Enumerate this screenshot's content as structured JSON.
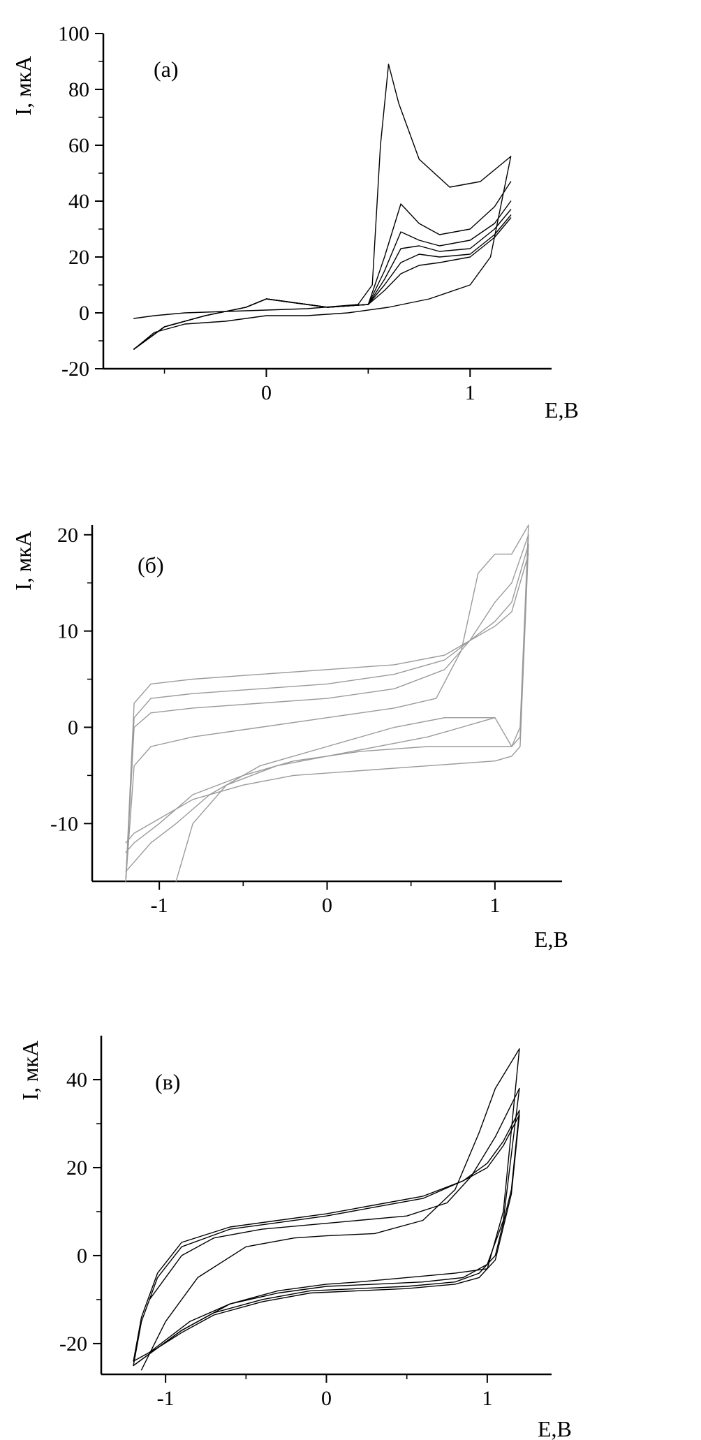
{
  "chart_data": [
    {
      "type": "line",
      "panel_label": "(а)",
      "xlabel": "E,B",
      "ylabel": "I, мкА",
      "xlim": [
        -0.8,
        1.4
      ],
      "ylim": [
        -20,
        100
      ],
      "xticks": [
        0,
        1
      ],
      "xtick_labels": [
        "0",
        "1"
      ],
      "yticks": [
        -20,
        0,
        20,
        40,
        60,
        80,
        100
      ],
      "ytick_labels": [
        "-20",
        "0",
        "20",
        "40",
        "60",
        "80",
        "100"
      ],
      "line_color": "#000000",
      "series": [
        {
          "x": [
            -0.65,
            -0.55,
            -0.4,
            -0.2,
            0.0,
            0.2,
            0.45,
            0.52,
            0.56,
            0.6,
            0.65,
            0.75,
            0.9,
            1.05,
            1.2
          ],
          "y": [
            -2,
            -1,
            0,
            0.5,
            1,
            1.5,
            3,
            10,
            60,
            89,
            75,
            55,
            45,
            47,
            56
          ]
        },
        {
          "x": [
            1.2,
            1.1,
            1.0,
            0.8,
            0.6,
            0.4,
            0.2,
            0.0,
            -0.2,
            -0.4,
            -0.55,
            -0.65
          ],
          "y": [
            56,
            20,
            10,
            5,
            2,
            0,
            -1,
            -1,
            -3,
            -4,
            -7,
            -13
          ]
        },
        {
          "x": [
            -0.65,
            -0.5,
            -0.3,
            -0.1,
            0.0,
            0.1,
            0.3,
            0.5,
            0.58,
            0.66,
            0.75,
            0.85,
            1.0,
            1.12,
            1.2
          ],
          "y": [
            -13,
            -5,
            -1,
            2,
            5,
            4,
            2,
            3,
            20,
            39,
            32,
            28,
            30,
            38,
            47
          ]
        },
        {
          "x": [
            -0.65,
            -0.5,
            -0.3,
            -0.1,
            0.0,
            0.1,
            0.3,
            0.5,
            0.58,
            0.66,
            0.75,
            0.85,
            1.0,
            1.12,
            1.2
          ],
          "y": [
            -13,
            -5,
            -1,
            2,
            5,
            4,
            2,
            3,
            15,
            29,
            26,
            24,
            26,
            32,
            40
          ]
        },
        {
          "x": [
            -0.65,
            -0.5,
            -0.3,
            -0.1,
            0.0,
            0.1,
            0.3,
            0.5,
            0.58,
            0.66,
            0.75,
            0.85,
            1.0,
            1.12,
            1.2
          ],
          "y": [
            -13,
            -5,
            -1,
            2,
            5,
            4,
            2,
            3,
            12,
            23,
            24,
            22,
            23,
            30,
            37
          ]
        },
        {
          "x": [
            -0.65,
            -0.5,
            -0.3,
            -0.1,
            0.0,
            0.1,
            0.3,
            0.5,
            0.58,
            0.66,
            0.75,
            0.85,
            1.0,
            1.12,
            1.2
          ],
          "y": [
            -13,
            -5,
            -1,
            2,
            5,
            4,
            2,
            3,
            10,
            18,
            21,
            20,
            21,
            28,
            35
          ]
        },
        {
          "x": [
            -0.65,
            -0.5,
            -0.3,
            -0.1,
            0.0,
            0.1,
            0.3,
            0.5,
            0.58,
            0.66,
            0.75,
            0.85,
            1.0,
            1.12,
            1.2
          ],
          "y": [
            -13,
            -5,
            -1,
            2,
            5,
            4,
            2,
            3,
            8,
            14,
            17,
            18,
            20,
            27,
            34
          ]
        }
      ]
    },
    {
      "type": "line",
      "panel_label": "(б)",
      "xlabel": "E,B",
      "ylabel": "I, мкА",
      "xlim": [
        -1.4,
        1.4
      ],
      "ylim": [
        -16,
        21
      ],
      "xticks": [
        -1,
        0,
        1
      ],
      "xtick_labels": [
        "-1",
        "0",
        "1"
      ],
      "yticks": [
        -10,
        0,
        10,
        20
      ],
      "ytick_labels": [
        "-10",
        "0",
        "10",
        "20"
      ],
      "line_color": "#9a9a9a",
      "series": [
        {
          "x": [
            -1.2,
            -1.15,
            -1.05,
            -0.8,
            -0.4,
            0.0,
            0.4,
            0.65,
            0.8,
            0.9,
            1.0,
            1.1,
            1.2
          ],
          "y": [
            -16,
            -4,
            -2,
            -1,
            0,
            1,
            2,
            3,
            8,
            16,
            18,
            18,
            21
          ]
        },
        {
          "x": [
            -1.2,
            -1.15,
            -1.05,
            -0.8,
            -0.4,
            0.0,
            0.4,
            0.7,
            0.85,
            1.0,
            1.1,
            1.2
          ],
          "y": [
            -16,
            0,
            1.5,
            2,
            2.5,
            3,
            4,
            6,
            9,
            13,
            15,
            20
          ]
        },
        {
          "x": [
            -1.2,
            -1.15,
            -1.05,
            -0.8,
            -0.4,
            0.0,
            0.4,
            0.7,
            0.85,
            1.0,
            1.1,
            1.2
          ],
          "y": [
            -16,
            1,
            3,
            3.5,
            4,
            4.5,
            5.5,
            7,
            9,
            11,
            13,
            19
          ]
        },
        {
          "x": [
            -1.2,
            -1.15,
            -1.05,
            -0.8,
            -0.4,
            0.0,
            0.4,
            0.7,
            0.85,
            1.0,
            1.1,
            1.2
          ],
          "y": [
            -16,
            2.5,
            4.5,
            5,
            5.5,
            6,
            6.5,
            7.5,
            9,
            10.5,
            12,
            18
          ]
        },
        {
          "x": [
            1.2,
            1.15,
            1.1,
            1.0,
            0.7,
            0.4,
            0.0,
            -0.4,
            -0.7,
            -0.9,
            -1.05,
            -1.2
          ],
          "y": [
            21,
            0,
            -2,
            1,
            1,
            0,
            -2,
            -4,
            -7,
            -10,
            -12,
            -15
          ]
        },
        {
          "x": [
            1.2,
            1.15,
            1.1,
            1.0,
            0.6,
            0.2,
            -0.2,
            -0.5,
            -0.8,
            -1.0,
            -1.15,
            -1.2
          ],
          "y": [
            20,
            -1,
            -2,
            -2,
            -2,
            -2.5,
            -3.5,
            -5,
            -7,
            -10,
            -12,
            -13
          ]
        },
        {
          "x": [
            1.2,
            1.15,
            1.1,
            1.0,
            0.6,
            0.2,
            -0.2,
            -0.5,
            -0.8,
            -1.0,
            -1.15,
            -1.2
          ],
          "y": [
            19,
            -2,
            -3,
            -3.5,
            -4,
            -4.5,
            -5,
            -6,
            -7.5,
            -9.5,
            -11,
            -12
          ]
        },
        {
          "x": [
            1.0,
            0.9,
            0.8,
            0.6,
            0.3,
            0.0,
            -0.3,
            -0.6,
            -0.8,
            -0.9
          ],
          "y": [
            1,
            0.5,
            0,
            -1,
            -2,
            -3,
            -4,
            -6,
            -10,
            -16
          ]
        }
      ]
    },
    {
      "type": "line",
      "panel_label": "(в)",
      "xlabel": "E,B",
      "ylabel": "I, мкА",
      "xlim": [
        -1.4,
        1.4
      ],
      "ylim": [
        -27,
        50
      ],
      "xticks": [
        -1,
        0,
        1
      ],
      "xtick_labels": [
        "-1",
        "0",
        "1"
      ],
      "yticks": [
        -20,
        0,
        20,
        40
      ],
      "ytick_labels": [
        "-20",
        "0",
        "20",
        "40"
      ],
      "line_color": "#000000",
      "series": [
        {
          "x": [
            -1.2,
            -1.15,
            -1.05,
            -0.9,
            -0.6,
            -0.3,
            0.0,
            0.3,
            0.6,
            0.85,
            1.0,
            1.1,
            1.2
          ],
          "y": [
            -25,
            -15,
            -5,
            2,
            6,
            7.5,
            9,
            11,
            13,
            17,
            21,
            26,
            33
          ]
        },
        {
          "x": [
            1.2,
            1.15,
            1.05,
            0.95,
            0.8,
            0.5,
            0.2,
            -0.1,
            -0.4,
            -0.7,
            -0.9,
            -1.05,
            -1.2
          ],
          "y": [
            33,
            15,
            0,
            -4,
            -6,
            -7,
            -7.5,
            -8,
            -10,
            -13,
            -17,
            -21,
            -25
          ]
        },
        {
          "x": [
            -1.2,
            -1.15,
            -1.05,
            -0.9,
            -0.6,
            -0.3,
            0.0,
            0.3,
            0.6,
            0.85,
            1.0,
            1.1,
            1.2
          ],
          "y": [
            -24,
            -14,
            -4,
            3,
            6.5,
            8,
            9.5,
            11.5,
            13.5,
            17,
            20,
            25,
            32
          ]
        },
        {
          "x": [
            1.2,
            1.15,
            1.05,
            0.95,
            0.8,
            0.5,
            0.2,
            -0.1,
            -0.4,
            -0.7,
            -0.9,
            -1.05,
            -1.2
          ],
          "y": [
            32,
            14,
            -1,
            -5,
            -6.5,
            -7.5,
            -8,
            -8.5,
            -10.5,
            -13.5,
            -17.5,
            -21,
            -24
          ]
        },
        {
          "x": [
            -1.15,
            -1.0,
            -0.8,
            -0.5,
            -0.2,
            0.0,
            0.3,
            0.6,
            0.8,
            0.95,
            1.05,
            1.2
          ],
          "y": [
            -26,
            -15,
            -5,
            2,
            4,
            4.5,
            5,
            8,
            15,
            28,
            38,
            47
          ]
        },
        {
          "x": [
            1.2,
            1.1,
            1.0,
            0.8,
            0.5,
            0.2,
            0.0,
            -0.3,
            -0.6,
            -0.9,
            -1.2
          ],
          "y": [
            47,
            10,
            -3,
            -4,
            -5,
            -6,
            -6.5,
            -8,
            -11,
            -17,
            -25
          ]
        },
        {
          "x": [
            -1.1,
            -0.9,
            -0.7,
            -0.4,
            -0.1,
            0.2,
            0.5,
            0.75,
            0.9,
            1.05,
            1.2
          ],
          "y": [
            -10,
            0,
            4,
            6,
            7,
            8,
            9,
            12,
            18,
            27,
            38
          ]
        },
        {
          "x": [
            1.2,
            1.1,
            1.0,
            0.85,
            0.6,
            0.3,
            0.0,
            -0.3,
            -0.6,
            -0.85,
            -1.1
          ],
          "y": [
            38,
            8,
            -2,
            -5,
            -6,
            -6.5,
            -7,
            -8.5,
            -11,
            -15,
            -22
          ]
        }
      ]
    }
  ]
}
